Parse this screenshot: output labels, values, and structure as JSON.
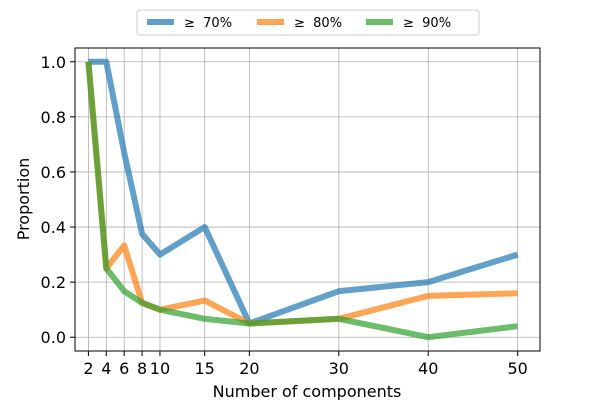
{
  "chart_data": {
    "type": "line",
    "xlabel": "Number of components",
    "ylabel": "Proportion",
    "x": [
      2,
      4,
      6,
      8,
      10,
      15,
      20,
      30,
      40,
      50
    ],
    "x_ticks": [
      "2",
      "4",
      "6",
      "8",
      "10",
      "15",
      "20",
      "30",
      "40",
      "50"
    ],
    "y_ticks": [
      "0.0",
      "0.2",
      "0.4",
      "0.6",
      "0.8",
      "1.0"
    ],
    "xlim": [
      0.5,
      52.5
    ],
    "ylim": [
      -0.05,
      1.05
    ],
    "grid": true,
    "legend_position": "top-center",
    "series": [
      {
        "name": "≥  70%",
        "color": "#1f77b4",
        "values": [
          1.0,
          1.0,
          0.67,
          0.375,
          0.3,
          0.4,
          0.05,
          0.167,
          0.2,
          0.3
        ]
      },
      {
        "name": "≥  80%",
        "color": "#ff7f0e",
        "values": [
          1.0,
          0.25,
          0.333,
          0.125,
          0.1,
          0.133,
          0.05,
          0.067,
          0.15,
          0.16
        ]
      },
      {
        "name": "≥  90%",
        "color": "#2ca02c",
        "values": [
          1.0,
          0.25,
          0.167,
          0.125,
          0.1,
          0.067,
          0.05,
          0.067,
          0.0,
          0.04
        ]
      }
    ]
  }
}
